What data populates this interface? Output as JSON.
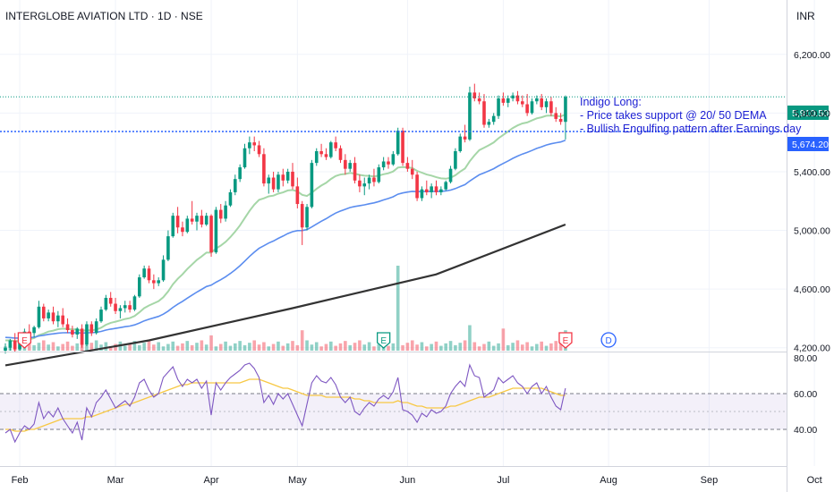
{
  "header": {
    "title": "INTERGLOBE AVIATION LTD · 1D · NSE"
  },
  "price_axis": {
    "currency": "INR",
    "ticks": [
      "6,200.00",
      "5,800.00",
      "5,400.00",
      "5,000.00",
      "4,600.00",
      "4,200.00"
    ],
    "tick_values": [
      6200,
      5800,
      5400,
      5000,
      4600,
      4200
    ],
    "last_price_label": "5,910.50",
    "last_price": 5910.5,
    "marker_label": "5,674.20",
    "marker_price": 5674.2
  },
  "time_axis": {
    "labels": [
      "Feb",
      "Mar",
      "Apr",
      "May",
      "Jun",
      "Jul",
      "Aug",
      "Sep",
      "Oct"
    ]
  },
  "annotation": {
    "lines": [
      "Indigo Long:",
      "- Price takes support @ 20/ 50 DEMA",
      "- Bullish Engulfing pattern after Earnings day"
    ]
  },
  "event_markers": [
    {
      "label": "E",
      "type": "earnings",
      "color": "#f23645"
    },
    {
      "label": "E",
      "type": "earnings",
      "color": "#089981"
    },
    {
      "label": "E",
      "type": "earnings",
      "color": "#f23645"
    },
    {
      "label": "D",
      "type": "dividend",
      "color": "#2962ff"
    }
  ],
  "rsi_axis": {
    "ticks": [
      "80.00",
      "60.00",
      "40.00"
    ],
    "tick_values": [
      80,
      60,
      40
    ],
    "band": [
      40,
      60
    ]
  },
  "colors": {
    "up": "#089981",
    "down": "#f23645",
    "ema20": "#a5d6a7",
    "ema50": "#5b8def",
    "ema200": "#333333",
    "rsi": "#7e57c2",
    "rsi_ma": "#f7c844",
    "annotation": "#1e22d4",
    "last_price_badge": "#089981",
    "marker_badge": "#2962ff"
  },
  "chart_data": {
    "type": "candlestick",
    "title": "INTERGLOBE AVIATION LTD · 1D · NSE",
    "price_range": [
      4180,
      6400
    ],
    "rsi_range": [
      20,
      82
    ],
    "months": [
      {
        "label": "Feb",
        "start_index": 3
      },
      {
        "label": "Mar",
        "start_index": 23
      },
      {
        "label": "Apr",
        "start_index": 43
      },
      {
        "label": "May",
        "start_index": 61
      },
      {
        "label": "Jun",
        "start_index": 84
      },
      {
        "label": "Jul",
        "start_index": 104
      },
      {
        "label": "Aug",
        "start_index": 126
      },
      {
        "label": "Sep",
        "start_index": 147
      },
      {
        "label": "Oct",
        "start_index": 169
      }
    ],
    "candles": [
      [
        4180,
        4230,
        4160,
        4200
      ],
      [
        4200,
        4260,
        4180,
        4250
      ],
      [
        4250,
        4300,
        4170,
        4190
      ],
      [
        4190,
        4280,
        4180,
        4270
      ],
      [
        4270,
        4330,
        4260,
        4310
      ],
      [
        4310,
        4360,
        4280,
        4300
      ],
      [
        4300,
        4350,
        4270,
        4340
      ],
      [
        4340,
        4520,
        4330,
        4480
      ],
      [
        4480,
        4500,
        4380,
        4400
      ],
      [
        4400,
        4460,
        4380,
        4440
      ],
      [
        4440,
        4480,
        4360,
        4380
      ],
      [
        4380,
        4450,
        4340,
        4420
      ],
      [
        4420,
        4470,
        4340,
        4360
      ],
      [
        4360,
        4400,
        4300,
        4320
      ],
      [
        4320,
        4350,
        4270,
        4290
      ],
      [
        4290,
        4340,
        4260,
        4330
      ],
      [
        4330,
        4360,
        4200,
        4220
      ],
      [
        4220,
        4380,
        4210,
        4360
      ],
      [
        4360,
        4380,
        4280,
        4300
      ],
      [
        4300,
        4400,
        4290,
        4380
      ],
      [
        4380,
        4480,
        4370,
        4460
      ],
      [
        4460,
        4560,
        4450,
        4540
      ],
      [
        4540,
        4580,
        4480,
        4500
      ],
      [
        4500,
        4540,
        4430,
        4450
      ],
      [
        4450,
        4490,
        4400,
        4470
      ],
      [
        4470,
        4520,
        4440,
        4490
      ],
      [
        4490,
        4520,
        4440,
        4460
      ],
      [
        4460,
        4560,
        4450,
        4550
      ],
      [
        4550,
        4700,
        4540,
        4680
      ],
      [
        4680,
        4760,
        4670,
        4740
      ],
      [
        4740,
        4760,
        4640,
        4660
      ],
      [
        4660,
        4700,
        4600,
        4640
      ],
      [
        4640,
        4680,
        4620,
        4660
      ],
      [
        4660,
        4830,
        4650,
        4800
      ],
      [
        4800,
        5000,
        4790,
        4960
      ],
      [
        4960,
        5120,
        4950,
        5100
      ],
      [
        5100,
        5160,
        4980,
        5020
      ],
      [
        5020,
        5060,
        4960,
        4990
      ],
      [
        4990,
        5100,
        4980,
        5080
      ],
      [
        5080,
        5200,
        5040,
        5060
      ],
      [
        5060,
        5120,
        5000,
        5100
      ],
      [
        5100,
        5140,
        5020,
        5040
      ],
      [
        5040,
        5120,
        5030,
        5100
      ],
      [
        5100,
        5110,
        4820,
        4850
      ],
      [
        4850,
        5160,
        4840,
        5140
      ],
      [
        5140,
        5180,
        5050,
        5080
      ],
      [
        5080,
        5200,
        5060,
        5170
      ],
      [
        5170,
        5280,
        5160,
        5260
      ],
      [
        5260,
        5380,
        5240,
        5350
      ],
      [
        5350,
        5450,
        5330,
        5430
      ],
      [
        5430,
        5590,
        5420,
        5560
      ],
      [
        5560,
        5640,
        5520,
        5600
      ],
      [
        5600,
        5640,
        5540,
        5580
      ],
      [
        5580,
        5610,
        5500,
        5520
      ],
      [
        5520,
        5560,
        5300,
        5320
      ],
      [
        5320,
        5380,
        5250,
        5360
      ],
      [
        5360,
        5400,
        5260,
        5280
      ],
      [
        5280,
        5400,
        5260,
        5380
      ],
      [
        5380,
        5420,
        5300,
        5340
      ],
      [
        5340,
        5420,
        5320,
        5400
      ],
      [
        5400,
        5460,
        5280,
        5300
      ],
      [
        5300,
        5360,
        5150,
        5180
      ],
      [
        5180,
        5200,
        4900,
        5020
      ],
      [
        5020,
        5180,
        5000,
        5160
      ],
      [
        5160,
        5480,
        5150,
        5460
      ],
      [
        5460,
        5560,
        5440,
        5540
      ],
      [
        5540,
        5590,
        5500,
        5520
      ],
      [
        5520,
        5560,
        5480,
        5500
      ],
      [
        5500,
        5610,
        5490,
        5600
      ],
      [
        5600,
        5640,
        5540,
        5560
      ],
      [
        5560,
        5580,
        5460,
        5480
      ],
      [
        5480,
        5520,
        5380,
        5420
      ],
      [
        5420,
        5480,
        5400,
        5460
      ],
      [
        5460,
        5500,
        5320,
        5340
      ],
      [
        5340,
        5380,
        5260,
        5300
      ],
      [
        5300,
        5360,
        5240,
        5320
      ],
      [
        5320,
        5380,
        5280,
        5360
      ],
      [
        5360,
        5420,
        5300,
        5330
      ],
      [
        5330,
        5450,
        5320,
        5430
      ],
      [
        5430,
        5500,
        5410,
        5470
      ],
      [
        5470,
        5500,
        5420,
        5450
      ],
      [
        5450,
        5540,
        5440,
        5520
      ],
      [
        5520,
        5700,
        5510,
        5680
      ],
      [
        5680,
        5700,
        5440,
        5460
      ],
      [
        5460,
        5500,
        5400,
        5420
      ],
      [
        5420,
        5480,
        5350,
        5380
      ],
      [
        5380,
        5400,
        5200,
        5220
      ],
      [
        5220,
        5300,
        5200,
        5280
      ],
      [
        5280,
        5340,
        5240,
        5260
      ],
      [
        5260,
        5320,
        5220,
        5300
      ],
      [
        5300,
        5340,
        5240,
        5260
      ],
      [
        5260,
        5300,
        5240,
        5280
      ],
      [
        5280,
        5340,
        5270,
        5330
      ],
      [
        5330,
        5440,
        5320,
        5420
      ],
      [
        5420,
        5560,
        5410,
        5540
      ],
      [
        5540,
        5660,
        5530,
        5640
      ],
      [
        5640,
        5720,
        5600,
        5620
      ],
      [
        5620,
        5980,
        5610,
        5940
      ],
      [
        5940,
        6000,
        5880,
        5900
      ],
      [
        5900,
        5940,
        5860,
        5880
      ],
      [
        5880,
        5930,
        5700,
        5720
      ],
      [
        5720,
        5760,
        5700,
        5740
      ],
      [
        5740,
        5800,
        5720,
        5780
      ],
      [
        5780,
        5920,
        5760,
        5900
      ],
      [
        5900,
        5940,
        5850,
        5870
      ],
      [
        5870,
        5920,
        5840,
        5900
      ],
      [
        5900,
        5940,
        5880,
        5920
      ],
      [
        5920,
        5950,
        5860,
        5880
      ],
      [
        5880,
        5920,
        5840,
        5860
      ],
      [
        5860,
        5930,
        5780,
        5800
      ],
      [
        5800,
        5900,
        5790,
        5880
      ],
      [
        5880,
        5920,
        5860,
        5900
      ],
      [
        5900,
        5930,
        5820,
        5840
      ],
      [
        5840,
        5900,
        5800,
        5880
      ],
      [
        5880,
        5910,
        5780,
        5800
      ],
      [
        5800,
        5840,
        5740,
        5760
      ],
      [
        5760,
        5800,
        5720,
        5740
      ],
      [
        5740,
        5920,
        5620,
        5910
      ]
    ],
    "rsi": [
      38,
      40,
      33,
      38,
      42,
      40,
      43,
      55,
      46,
      50,
      47,
      52,
      46,
      42,
      38,
      44,
      34,
      52,
      47,
      55,
      58,
      62,
      57,
      52,
      54,
      56,
      53,
      58,
      66,
      68,
      62,
      58,
      60,
      69,
      72,
      75,
      68,
      64,
      68,
      66,
      68,
      63,
      67,
      48,
      66,
      62,
      66,
      69,
      71,
      73,
      76,
      77,
      74,
      69,
      55,
      59,
      54,
      60,
      57,
      60,
      54,
      48,
      42,
      54,
      66,
      70,
      67,
      66,
      69,
      65,
      58,
      55,
      58,
      50,
      48,
      52,
      55,
      53,
      57,
      59,
      57,
      61,
      69,
      51,
      50,
      48,
      44,
      49,
      47,
      51,
      49,
      50,
      53,
      60,
      64,
      67,
      64,
      76,
      70,
      69,
      58,
      60,
      62,
      69,
      66,
      68,
      70,
      66,
      64,
      60,
      64,
      66,
      60,
      64,
      58,
      53,
      51,
      63
    ],
    "rsi_ma": [
      40,
      40,
      39,
      39,
      39,
      40,
      40,
      41,
      42,
      43,
      44,
      45,
      46,
      46,
      46,
      46,
      46,
      47,
      47,
      48,
      49,
      50,
      51,
      52,
      53,
      54,
      54,
      55,
      56,
      57,
      58,
      59,
      60,
      61,
      62,
      63,
      64,
      65,
      65,
      66,
      66,
      66,
      66,
      66,
      66,
      66,
      66,
      66,
      66,
      66,
      67,
      68,
      68,
      68,
      67,
      66,
      65,
      64,
      63,
      63,
      62,
      61,
      60,
      59,
      59,
      59,
      59,
      58,
      58,
      58,
      58,
      58,
      58,
      57,
      57,
      56,
      56,
      55,
      55,
      55,
      55,
      55,
      56,
      55,
      55,
      54,
      53,
      53,
      52,
      52,
      52,
      52,
      52,
      53,
      53,
      54,
      55,
      56,
      57,
      58,
      58,
      58,
      59,
      60,
      61,
      62,
      63,
      63,
      63,
      63,
      63,
      63,
      63,
      62,
      61,
      60,
      59,
      59
    ],
    "volume_spikes": [
      {
        "index": 16,
        "volume": 2.2
      },
      {
        "index": 43,
        "volume": 1.8
      },
      {
        "index": 62,
        "volume": 2.4
      },
      {
        "index": 82,
        "volume": 10.0
      },
      {
        "index": 97,
        "volume": 3.0
      },
      {
        "index": 104,
        "volume": 2.6
      },
      {
        "index": 116,
        "volume": 2.0
      },
      {
        "index": 117,
        "volume": 2.4
      }
    ],
    "ema_periods": [
      20,
      50,
      200
    ],
    "ema200_points": [
      [
        0,
        4080
      ],
      [
        30,
        4250
      ],
      [
        60,
        4470
      ],
      [
        90,
        4700
      ],
      [
        117,
        5040
      ]
    ],
    "events": [
      {
        "label": "E",
        "index": 4
      },
      {
        "label": "E",
        "index": 79
      },
      {
        "label": "E",
        "index": 117
      },
      {
        "label": "D",
        "index": 126
      }
    ]
  }
}
